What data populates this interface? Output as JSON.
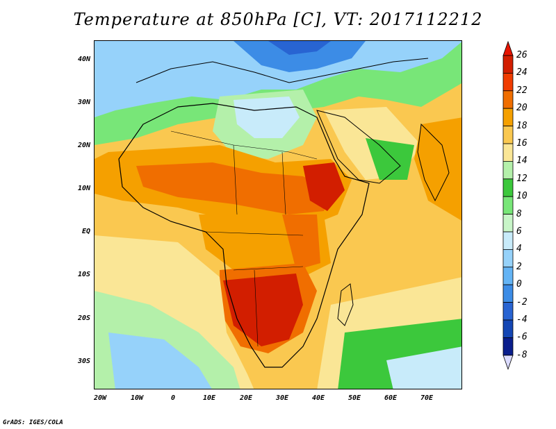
{
  "title": "Temperature at 850hPa [C], VT: 2017112212",
  "credit": "GrADS: IGES/COLA",
  "lat_labels": [
    "40N",
    "30N",
    "20N",
    "10N",
    "EQ",
    "10S",
    "20S",
    "30S"
  ],
  "lon_labels": [
    "20W",
    "10W",
    "0",
    "10E",
    "20E",
    "30E",
    "40E",
    "50E",
    "60E",
    "70E"
  ],
  "colorbar": {
    "labels": [
      "26",
      "24",
      "22",
      "20",
      "18",
      "16",
      "14",
      "12",
      "10",
      "8",
      "6",
      "4",
      "2",
      "0",
      "-2",
      "-4",
      "-6",
      "-8"
    ],
    "colors": [
      "#d21e00",
      "#f03c00",
      "#f06e00",
      "#f5a000",
      "#fac850",
      "#fae696",
      "#b4f0aa",
      "#3cc83c",
      "#78e678",
      "#c8f5c8",
      "#c8ebfa",
      "#96d2fa",
      "#64b4f5",
      "#3c8ce6",
      "#2864d2",
      "#1446b4",
      "#0a1e8c",
      "#000064"
    ],
    "top_color": "#e61400",
    "bottom_color": "#dcdcff"
  },
  "map": {
    "projection": "latlon",
    "lon_range": [
      -25,
      80
    ],
    "lat_range": [
      -37,
      45
    ],
    "variable": "Temperature at 850hPa",
    "units": "C"
  }
}
